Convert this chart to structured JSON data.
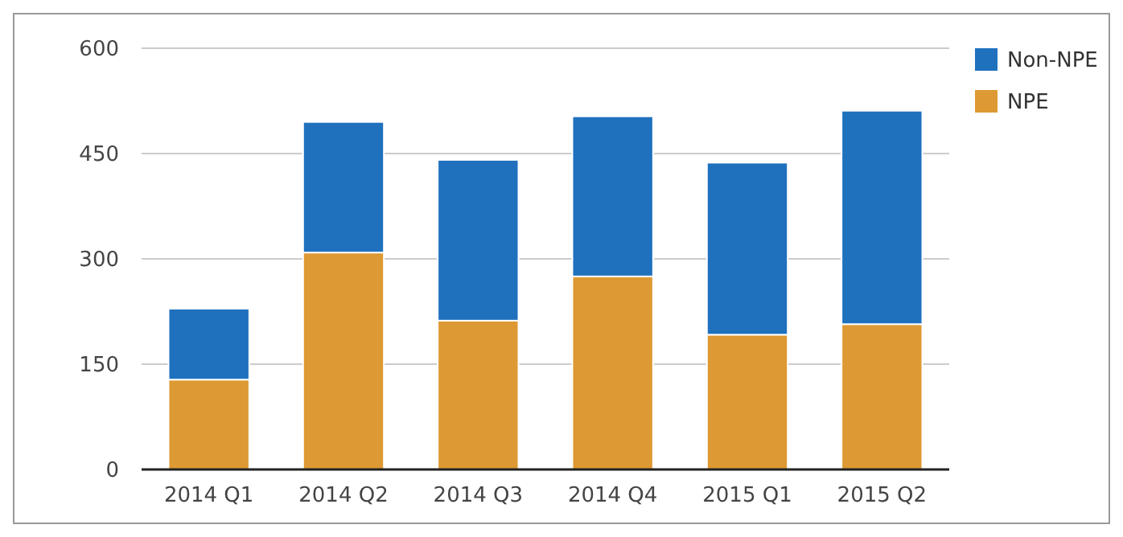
{
  "chart_data": {
    "type": "bar",
    "stacked": true,
    "categories": [
      "2014 Q1",
      "2014 Q2",
      "2014 Q3",
      "2014 Q4",
      "2015 Q1",
      "2015 Q2"
    ],
    "series": [
      {
        "name": "NPE",
        "color": "#dd9933",
        "values": [
          128,
          309,
          212,
          275,
          192,
          207
        ]
      },
      {
        "name": "Non-NPE",
        "color": "#1f71be",
        "values": [
          101,
          186,
          229,
          228,
          245,
          304
        ]
      }
    ],
    "ylim": [
      0,
      600
    ],
    "yticks": [
      0,
      150,
      300,
      450,
      600
    ],
    "grid": "y",
    "legend": "top right"
  }
}
